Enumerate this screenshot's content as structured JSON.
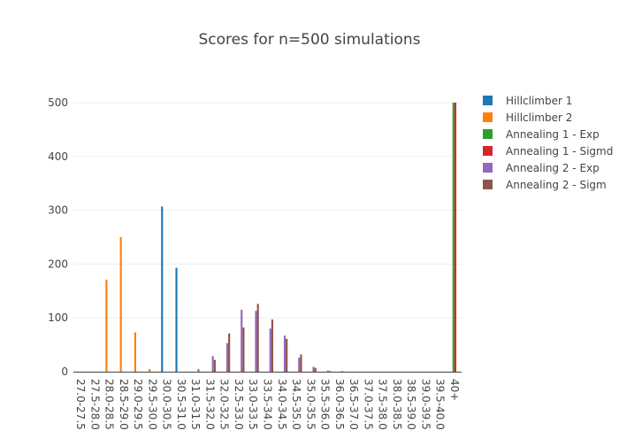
{
  "chart_data": {
    "type": "bar",
    "title": "Scores for n=500 simulations",
    "xlabel": "",
    "ylabel": "",
    "ylim": [
      0,
      500
    ],
    "yticks": [
      0,
      100,
      200,
      300,
      400,
      500
    ],
    "grid": true,
    "legend_position": "right",
    "categories": [
      "27.0-27.5",
      "27.5-28.0",
      "28.0-28.5",
      "28.5-29.0",
      "29.0-29.5",
      "29.5-30.0",
      "30.0-30.5",
      "30.5-31.0",
      "31.0-31.5",
      "31.5-32.0",
      "32.0-32.5",
      "32.5-33.0",
      "33.0-33.5",
      "33.5-34.0",
      "34.0-34.5",
      "34.5-35.0",
      "35.0-35.5",
      "35.5-36.0",
      "36.0-36.5",
      "36.5-37.0",
      "37.0-37.5",
      "37.5-38.0",
      "38.0-38.5",
      "38.5-39.0",
      "39.0-39.5",
      "39.5-40.0",
      "40+"
    ],
    "series": [
      {
        "name": "Hillclimber 1",
        "color": "#1f77b4",
        "values": [
          0,
          0,
          0,
          0,
          0,
          0,
          307,
          193,
          0,
          0,
          0,
          0,
          0,
          0,
          0,
          0,
          0,
          0,
          0,
          0,
          0,
          0,
          0,
          0,
          0,
          0,
          0
        ]
      },
      {
        "name": "Hillclimber 2",
        "color": "#ff7f0e",
        "values": [
          0,
          0,
          171,
          250,
          73,
          5,
          0,
          0,
          0,
          0,
          0,
          0,
          0,
          0,
          0,
          0,
          0,
          0,
          0,
          0,
          0,
          0,
          0,
          0,
          0,
          0,
          0
        ]
      },
      {
        "name": "Annealing 1 - Exp",
        "color": "#2ca02c",
        "values": [
          0,
          0,
          0,
          0,
          0,
          0,
          0,
          0,
          0,
          0,
          0,
          0,
          0,
          0,
          0,
          0,
          0,
          0,
          0,
          0,
          0,
          0,
          0,
          0,
          0,
          0,
          500
        ]
      },
      {
        "name": "Annealing 1 - Sigmd",
        "color": "#d62728",
        "values": [
          0,
          0,
          0,
          0,
          0,
          0,
          0,
          0,
          0,
          0,
          0,
          0,
          0,
          0,
          0,
          0,
          0,
          0,
          0,
          0,
          0,
          0,
          0,
          0,
          0,
          0,
          500
        ]
      },
      {
        "name": "Annealing 2 - Exp",
        "color": "#9467bd",
        "values": [
          0,
          0,
          0,
          0,
          0,
          0,
          0,
          0,
          5,
          29,
          53,
          115,
          113,
          80,
          67,
          26,
          9,
          2,
          1,
          0,
          0,
          0,
          0,
          0,
          0,
          0,
          0
        ]
      },
      {
        "name": "Annealing 2 - Sigm",
        "color": "#8c564b",
        "values": [
          0,
          0,
          0,
          0,
          0,
          0,
          0,
          0,
          0,
          22,
          71,
          82,
          126,
          97,
          61,
          32,
          7,
          1,
          0,
          0,
          0,
          0,
          0,
          0,
          0,
          0,
          0
        ]
      }
    ]
  }
}
